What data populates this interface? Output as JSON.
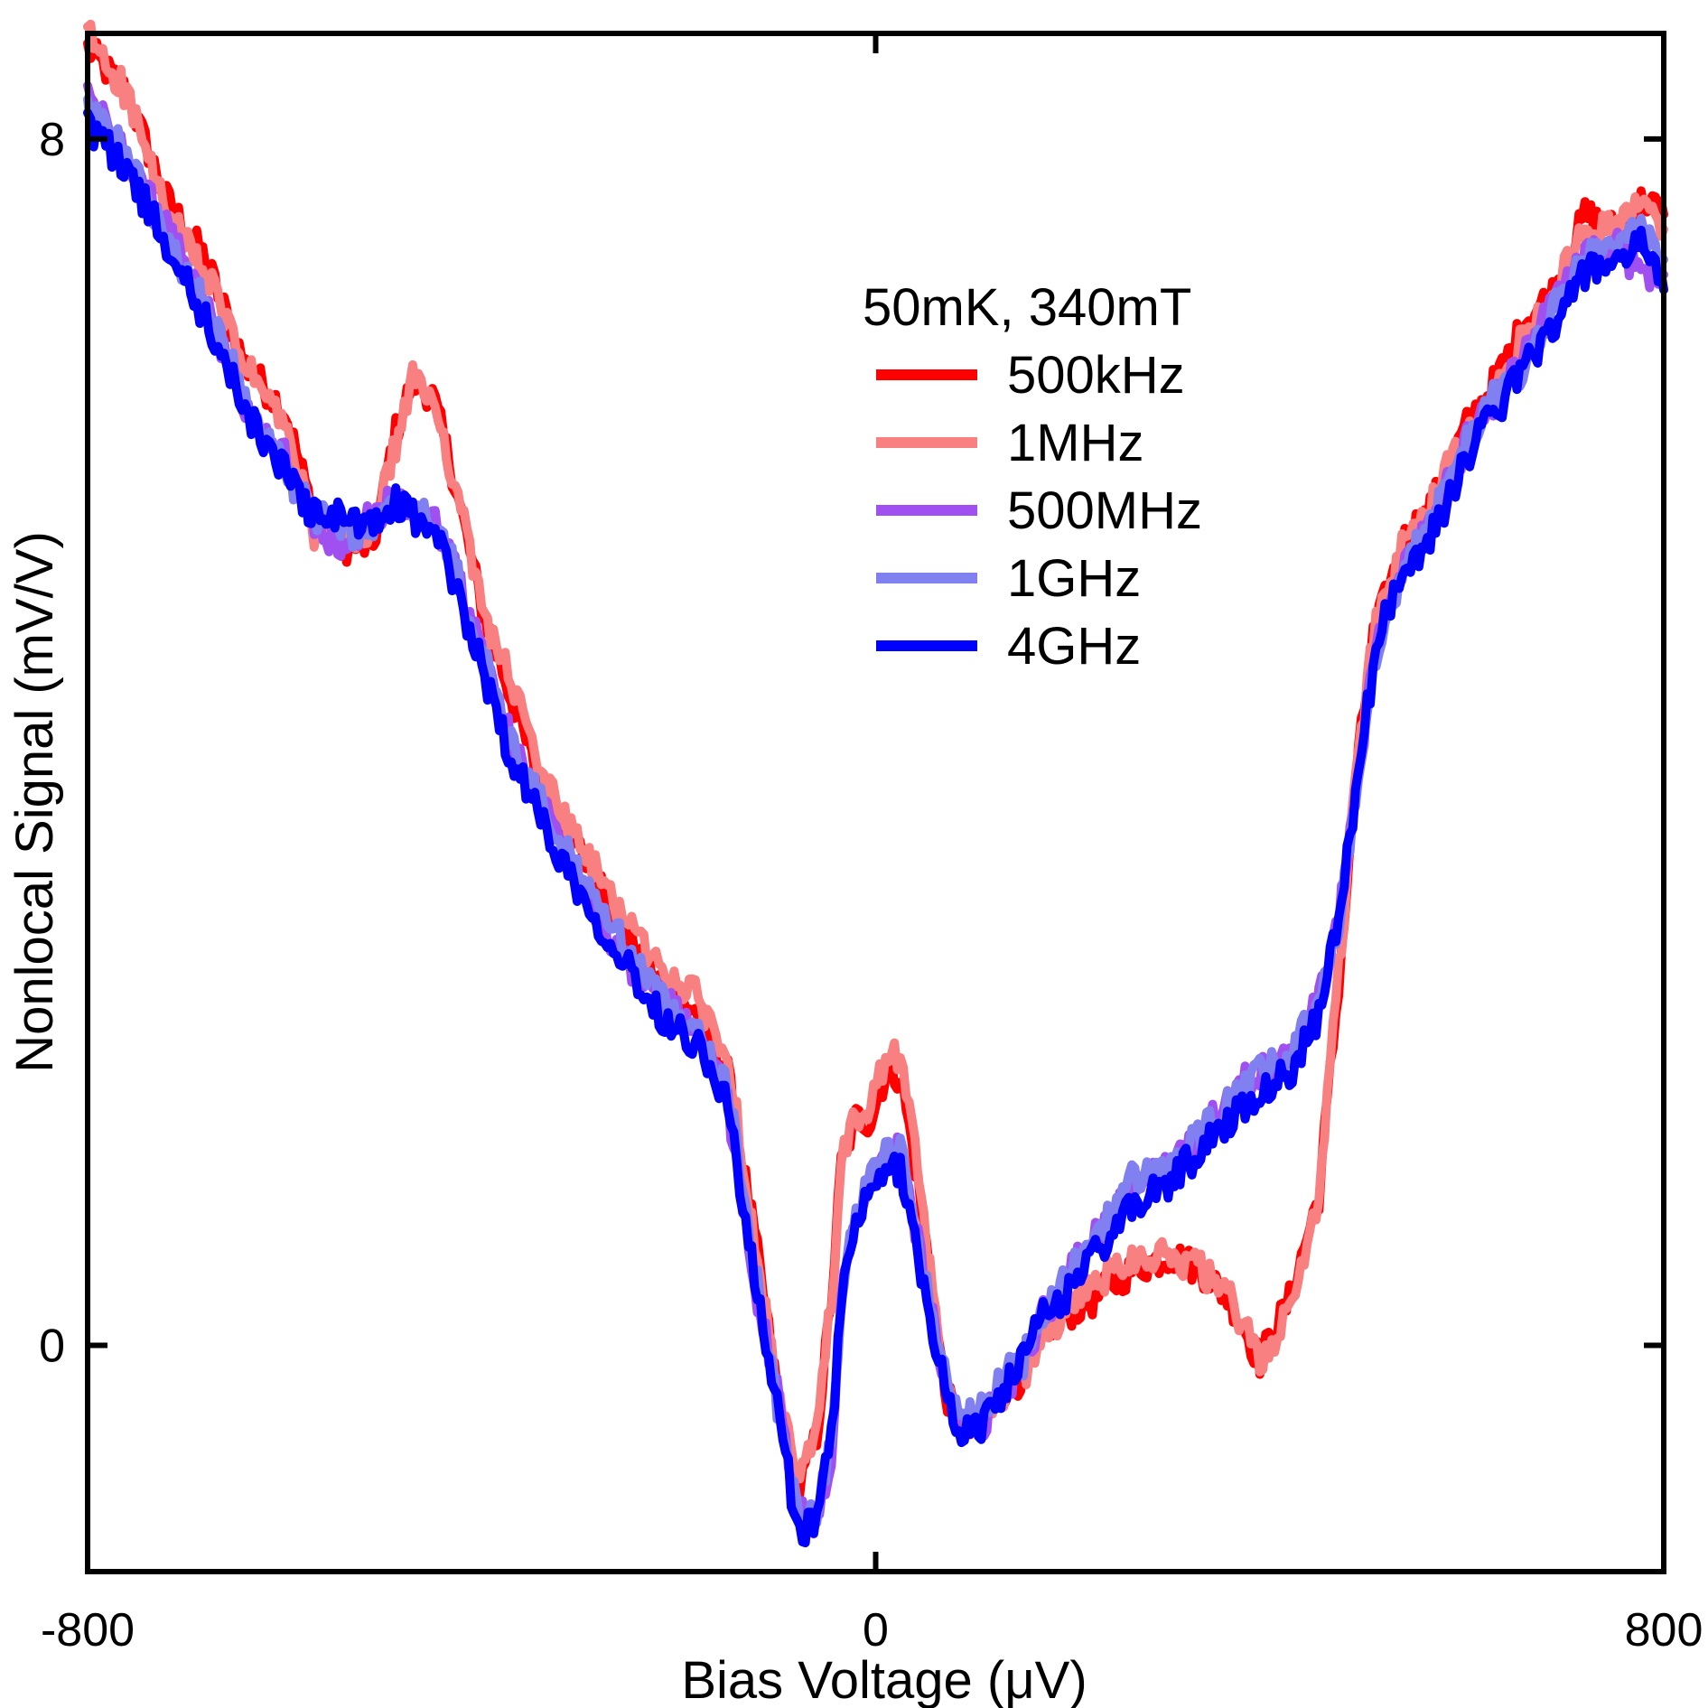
{
  "chart_data": {
    "type": "line",
    "title": "",
    "xlabel": "Bias Voltage (μV)",
    "ylabel": "Nonlocal Signal (mV/V)",
    "xlim": [
      -800,
      800
    ],
    "ylim": [
      -1.5,
      8.7
    ],
    "xticks": [
      -800,
      0,
      800
    ],
    "xtick_labels": [
      "-800",
      "0",
      "800"
    ],
    "yticks": [
      0,
      8
    ],
    "ytick_labels": [
      "0",
      "8"
    ],
    "grid": false,
    "legend_title": "50mK, 340mT",
    "legend_position": "upper-center",
    "series": [
      {
        "name": "500kHz",
        "color": "#ff0000",
        "x": [
          -800,
          -760,
          -720,
          -680,
          -640,
          -600,
          -570,
          -540,
          -510,
          -490,
          -470,
          -450,
          -430,
          -400,
          -370,
          -340,
          -300,
          -260,
          -220,
          -180,
          -150,
          -120,
          -100,
          -80,
          -60,
          -45,
          -35,
          -20,
          -5,
          10,
          25,
          40,
          55,
          70,
          90,
          110,
          130,
          150,
          170,
          190,
          220,
          260,
          300,
          330,
          360,
          390,
          420,
          450,
          470,
          490,
          505,
          520,
          540,
          560,
          580,
          600,
          630,
          660,
          690,
          720,
          750,
          780,
          800
        ],
        "y": [
          8.6,
          8.3,
          7.6,
          7.2,
          6.5,
          6.2,
          5.5,
          5.3,
          5.3,
          6.0,
          6.4,
          6.3,
          5.8,
          4.9,
          4.3,
          3.7,
          3.3,
          2.8,
          2.4,
          2.2,
          1.8,
          0.6,
          -0.3,
          -1.0,
          -0.6,
          0.3,
          1.2,
          1.5,
          1.5,
          1.8,
          1.8,
          1.2,
          0.5,
          -0.3,
          -0.6,
          -0.5,
          -0.3,
          -0.2,
          0.1,
          0.2,
          0.3,
          0.5,
          0.6,
          0.5,
          0.3,
          -0.1,
          0.3,
          1.0,
          2.4,
          3.9,
          4.7,
          5.0,
          5.4,
          5.5,
          5.8,
          6.1,
          6.4,
          6.8,
          7.0,
          7.5,
          7.4,
          7.6,
          7.5
        ]
      },
      {
        "name": "1MHz",
        "color": "#f88080",
        "x": [
          -800,
          -760,
          -720,
          -680,
          -640,
          -600,
          -570,
          -540,
          -510,
          -490,
          -470,
          -450,
          -430,
          -400,
          -370,
          -340,
          -300,
          -260,
          -220,
          -180,
          -150,
          -120,
          -100,
          -80,
          -60,
          -45,
          -35,
          -20,
          -5,
          10,
          25,
          40,
          55,
          70,
          90,
          110,
          130,
          150,
          170,
          190,
          220,
          260,
          300,
          330,
          360,
          390,
          420,
          450,
          470,
          490,
          505,
          520,
          540,
          560,
          580,
          600,
          630,
          660,
          690,
          720,
          750,
          780,
          800
        ],
        "y": [
          8.7,
          8.3,
          7.5,
          7.1,
          6.5,
          6.1,
          5.4,
          5.3,
          5.4,
          5.9,
          6.4,
          6.3,
          5.8,
          4.9,
          4.4,
          3.8,
          3.3,
          2.9,
          2.5,
          2.3,
          1.9,
          0.6,
          -0.3,
          -0.9,
          -0.6,
          0.3,
          1.2,
          1.5,
          1.6,
          1.9,
          1.9,
          1.3,
          0.5,
          -0.3,
          -0.5,
          -0.5,
          -0.3,
          -0.2,
          0.1,
          0.2,
          0.4,
          0.6,
          0.6,
          0.5,
          0.3,
          -0.1,
          0.2,
          1.0,
          2.5,
          3.9,
          4.7,
          5.0,
          5.4,
          5.5,
          5.8,
          6.0,
          6.4,
          6.7,
          7.0,
          7.4,
          7.4,
          7.6,
          7.4
        ]
      },
      {
        "name": "500MHz",
        "color": "#a050f0",
        "x": [
          -800,
          -760,
          -720,
          -680,
          -640,
          -600,
          -570,
          -540,
          -510,
          -490,
          -470,
          -450,
          -430,
          -400,
          -370,
          -340,
          -300,
          -260,
          -220,
          -180,
          -150,
          -120,
          -100,
          -80,
          -60,
          -45,
          -35,
          -20,
          -5,
          10,
          25,
          40,
          55,
          70,
          90,
          110,
          130,
          150,
          170,
          190,
          220,
          260,
          300,
          330,
          360,
          390,
          420,
          450,
          470,
          490,
          505,
          520,
          540,
          560,
          580,
          600,
          630,
          660,
          690,
          720,
          750,
          780,
          800
        ],
        "y": [
          8.3,
          7.9,
          7.4,
          6.9,
          6.2,
          5.9,
          5.4,
          5.3,
          5.5,
          5.6,
          5.5,
          5.5,
          5.2,
          4.6,
          4.0,
          3.6,
          3.1,
          2.6,
          2.3,
          2.1,
          1.6,
          0.3,
          -0.3,
          -1.1,
          -1.2,
          -0.7,
          0.3,
          0.9,
          1.1,
          1.2,
          1.3,
          0.8,
          0.3,
          -0.3,
          -0.6,
          -0.5,
          -0.3,
          -0.1,
          0.2,
          0.4,
          0.7,
          1.0,
          1.2,
          1.4,
          1.7,
          1.8,
          1.9,
          2.3,
          2.8,
          3.8,
          4.5,
          4.9,
          5.2,
          5.4,
          5.7,
          6.0,
          6.3,
          6.6,
          6.9,
          7.2,
          7.3,
          7.1,
          7.1
        ]
      },
      {
        "name": "1GHz",
        "color": "#8080f0",
        "x": [
          -800,
          -760,
          -720,
          -680,
          -640,
          -600,
          -570,
          -540,
          -510,
          -490,
          -470,
          -450,
          -430,
          -400,
          -370,
          -340,
          -300,
          -260,
          -220,
          -180,
          -150,
          -120,
          -100,
          -80,
          -60,
          -45,
          -35,
          -20,
          -5,
          10,
          25,
          40,
          55,
          70,
          90,
          110,
          130,
          150,
          170,
          190,
          220,
          260,
          300,
          330,
          360,
          390,
          420,
          450,
          470,
          490,
          505,
          520,
          540,
          560,
          580,
          600,
          630,
          660,
          690,
          720,
          750,
          780,
          800
        ],
        "y": [
          8.2,
          7.9,
          7.3,
          6.9,
          6.3,
          5.8,
          5.5,
          5.4,
          5.4,
          5.6,
          5.5,
          5.5,
          5.2,
          4.6,
          4.0,
          3.6,
          3.1,
          2.7,
          2.3,
          2.1,
          1.7,
          0.4,
          -0.4,
          -1.1,
          -1.1,
          -0.6,
          0.3,
          0.9,
          1.1,
          1.3,
          1.3,
          0.8,
          0.3,
          -0.2,
          -0.5,
          -0.4,
          -0.2,
          -0.1,
          0.2,
          0.4,
          0.7,
          1.1,
          1.2,
          1.4,
          1.6,
          1.8,
          1.9,
          2.3,
          2.8,
          3.8,
          4.5,
          4.9,
          5.2,
          5.4,
          5.7,
          6.0,
          6.3,
          6.5,
          6.9,
          7.2,
          7.3,
          7.4,
          7.2
        ]
      },
      {
        "name": "4GHz",
        "color": "#0000ff",
        "x": [
          -800,
          -760,
          -720,
          -680,
          -640,
          -600,
          -570,
          -540,
          -510,
          -490,
          -470,
          -450,
          -430,
          -400,
          -370,
          -340,
          -300,
          -260,
          -220,
          -180,
          -150,
          -120,
          -100,
          -80,
          -60,
          -45,
          -35,
          -20,
          -5,
          10,
          25,
          40,
          55,
          70,
          90,
          110,
          130,
          150,
          170,
          190,
          220,
          260,
          300,
          330,
          360,
          390,
          420,
          450,
          470,
          490,
          505,
          520,
          540,
          560,
          580,
          600,
          630,
          660,
          690,
          720,
          750,
          780,
          800
        ],
        "y": [
          8.1,
          7.8,
          7.3,
          6.8,
          6.2,
          5.8,
          5.5,
          5.5,
          5.4,
          5.6,
          5.5,
          5.4,
          5.1,
          4.5,
          3.9,
          3.5,
          3.0,
          2.6,
          2.2,
          2.0,
          1.6,
          0.3,
          -0.4,
          -1.2,
          -1.2,
          -0.6,
          0.3,
          0.8,
          1.0,
          1.1,
          1.2,
          0.7,
          0.2,
          -0.3,
          -0.6,
          -0.5,
          -0.3,
          -0.1,
          0.2,
          0.3,
          0.6,
          0.9,
          1.1,
          1.3,
          1.5,
          1.7,
          1.8,
          2.2,
          2.8,
          3.8,
          4.5,
          4.9,
          5.2,
          5.3,
          5.6,
          5.9,
          6.2,
          6.5,
          6.8,
          7.1,
          7.2,
          7.3,
          7.0
        ]
      }
    ]
  }
}
